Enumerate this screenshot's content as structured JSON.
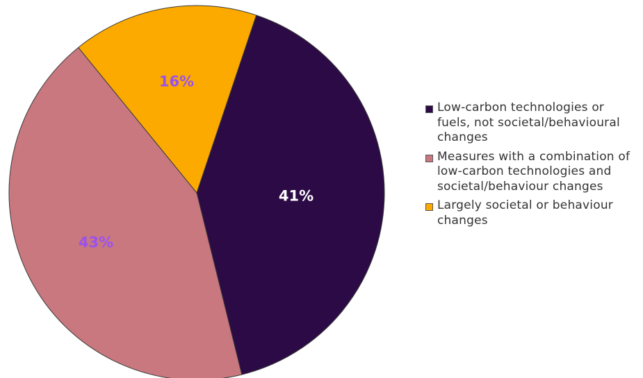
{
  "chart_data": {
    "type": "pie",
    "title": "",
    "slices": [
      {
        "label": "Low-carbon technologies or fuels, not societal/behavioural changes",
        "value": 41,
        "display": "41%",
        "color": "#2b0a45",
        "label_color": "#ffffff"
      },
      {
        "label": "Measures with a combination of low-carbon technologies and societal/behaviour changes",
        "value": 43,
        "display": "43%",
        "color": "#c8787e",
        "label_color": "#9a52ee"
      },
      {
        "label": "Largely societal or behaviour changes",
        "value": 16,
        "display": "16%",
        "color": "#fcaa00",
        "label_color": "#9a52ee"
      }
    ],
    "legend": {
      "placement": "right"
    }
  }
}
